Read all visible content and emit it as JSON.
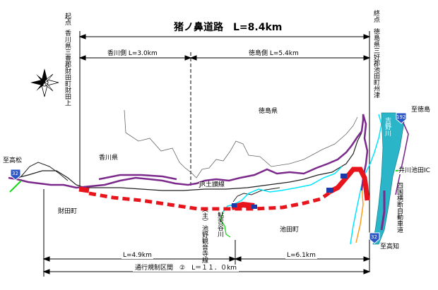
{
  "title": "猪ノ鼻道路　L=8.4km",
  "start_point": {
    "label": "起点",
    "address": "香川県三豊郡財田町財田上"
  },
  "end_point": {
    "label": "終点",
    "address": "徳島県三好郡池田町州津"
  },
  "section_kagawa": "香川側 L=3.0km",
  "section_tokushima": "徳島側 L=5.4km",
  "pref_tokushima": "徳島県",
  "pref_kagawa": "香川県",
  "to_takamatsu": "至高松",
  "to_mitoyo": "至徳島",
  "to_kochi": "至高知",
  "town_saita": "財田町",
  "town_ikeda": "池田町",
  "rail_dosan": "JR土讃線",
  "rail_yoshino_river": "吉野川",
  "river_kanonji": "鮎苦谷川",
  "route_kanonji": "（主）池野観音寺線",
  "ic_label": "井川池田IC",
  "expressway": "四国横断自動車道",
  "route_32_a": "32",
  "route_32_b": "32",
  "route_192": "192",
  "dist_saita": "L=4.9km",
  "dist_ikeda": "L=6.1km",
  "restriction": "通行規制区間　②　L＝１１．０km",
  "colors": {
    "national_route": "#7b2a8c",
    "new_road": "#e8141c",
    "river": "#00e5ff",
    "expressway_area": "#2bb5c8",
    "ic_road": "#18d818",
    "route_marker": "#2a56c8",
    "orange_road": "#ff9a1a"
  }
}
